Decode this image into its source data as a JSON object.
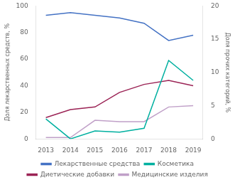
{
  "chart_data": {
    "type": "line",
    "x": [
      2013,
      2014,
      2015,
      2016,
      2017,
      2018,
      2019
    ],
    "xlim": [
      2012.6,
      2019.4
    ],
    "xticks": [
      2013,
      2014,
      2015,
      2016,
      2017,
      2018,
      2019
    ],
    "ylim": [
      0,
      100
    ],
    "yticks": [
      0,
      20,
      40,
      60,
      80,
      100
    ],
    "y2lim": [
      0,
      20
    ],
    "y2ticks": [
      0,
      5,
      10,
      15,
      20
    ],
    "ylabel": "Доля лекарственных средств, %",
    "y2label": "Доля прочих категорий, %",
    "grid": false,
    "legend": "bottom",
    "series": [
      {
        "name": "Лекарственные средства",
        "color": "#4472C4",
        "axis": "y",
        "values": [
          93,
          95,
          93,
          91,
          87,
          74,
          78
        ]
      },
      {
        "name": "Косметика",
        "color": "#00B0A0",
        "axis": "y2",
        "values": [
          3.0,
          0.0,
          1.2,
          1.0,
          1.6,
          11.8,
          8.8
        ]
      },
      {
        "name": "Диетические добавки",
        "color": "#9B2355",
        "axis": "y2",
        "values": [
          3.2,
          4.4,
          4.8,
          7.0,
          8.2,
          8.8,
          8.0
        ]
      },
      {
        "name": "Медицинские изделия",
        "color": "#C0A0C8",
        "axis": "y2",
        "values": [
          0.2,
          0.2,
          2.8,
          2.6,
          2.6,
          4.8,
          5.0
        ]
      }
    ]
  }
}
